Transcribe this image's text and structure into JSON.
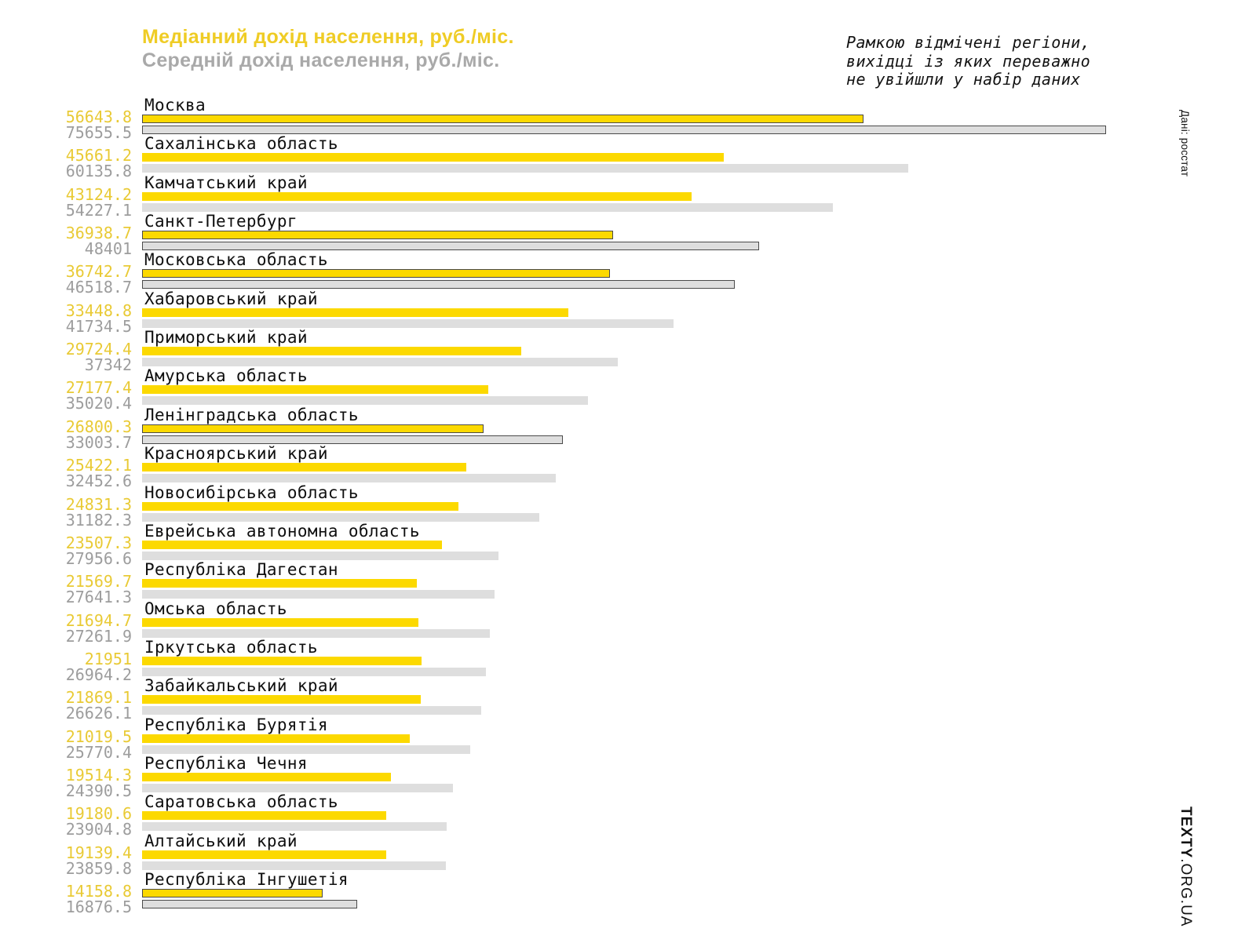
{
  "header": {
    "title": "Медіанний дохід населення, руб./міс.",
    "subtitle": "Середній дохід населення, руб./міс."
  },
  "note": {
    "lines": [
      "Рамкою відмічені регіони,",
      "вихідці із яких переважно",
      "не увійшли у набір даних"
    ]
  },
  "source": "Дані: росстат",
  "watermark": {
    "bold": "TEXTY",
    "rest": ".ORG.UA"
  },
  "colors": {
    "median_bar": "#fcd900",
    "mean_bar": "#dedede",
    "box_border": "#4a4a4a",
    "title_yellow": "#efcc25",
    "subtitle_gray": "#a9a9a9",
    "median_value_text": "#e9ca35",
    "mean_value_text": "#9d9d9d"
  },
  "chart_data": {
    "type": "bar",
    "orientation": "horizontal",
    "title": "Медіанний дохід населення, руб./міс.",
    "subtitle": "Середній дохід населення, руб./міс.",
    "value_axis_max": 75655.5,
    "grid": false,
    "legend_position": "title-as-legend",
    "series": [
      {
        "name": "Медіанний дохід населення, руб./міс.",
        "color": "#fcd900"
      },
      {
        "name": "Середній дохід населення, руб./міс.",
        "color": "#dedede"
      }
    ],
    "boxed_meaning": "Рамкою відмічені регіони, вихідці із яких переважно не увійшли у набір даних",
    "regions": [
      {
        "name": "Москва",
        "median": 56643.8,
        "mean": 75655.5,
        "boxed": true
      },
      {
        "name": "Сахалінська область",
        "median": 45661.2,
        "mean": 60135.8,
        "boxed": false
      },
      {
        "name": "Камчатський край",
        "median": 43124.2,
        "mean": 54227.1,
        "boxed": false
      },
      {
        "name": "Санкт-Петербург",
        "median": 36938.7,
        "mean": 48401,
        "boxed": true
      },
      {
        "name": "Московська область",
        "median": 36742.7,
        "mean": 46518.7,
        "boxed": true
      },
      {
        "name": "Хабаровський край",
        "median": 33448.8,
        "mean": 41734.5,
        "boxed": false
      },
      {
        "name": "Приморський край",
        "median": 29724.4,
        "mean": 37342,
        "boxed": false
      },
      {
        "name": "Амурська область",
        "median": 27177.4,
        "mean": 35020.4,
        "boxed": false
      },
      {
        "name": "Ленінградська область",
        "median": 26800.3,
        "mean": 33003.7,
        "boxed": true
      },
      {
        "name": "Красноярський край",
        "median": 25422.1,
        "mean": 32452.6,
        "boxed": false
      },
      {
        "name": "Новосибірська область",
        "median": 24831.3,
        "mean": 31182.3,
        "boxed": false
      },
      {
        "name": "Еврейська автономна область",
        "median": 23507.3,
        "mean": 27956.6,
        "boxed": false
      },
      {
        "name": "Республіка Дагестан",
        "median": 21569.7,
        "mean": 27641.3,
        "boxed": false
      },
      {
        "name": "Омська область",
        "median": 21694.7,
        "mean": 27261.9,
        "boxed": false
      },
      {
        "name": "Іркутська область",
        "median": 21951,
        "mean": 26964.2,
        "boxed": false
      },
      {
        "name": "Забайкальський край",
        "median": 21869.1,
        "mean": 26626.1,
        "boxed": false
      },
      {
        "name": "Республіка Бурятія",
        "median": 21019.5,
        "mean": 25770.4,
        "boxed": false
      },
      {
        "name": "Республіка Чечня",
        "median": 19514.3,
        "mean": 24390.5,
        "boxed": false
      },
      {
        "name": "Саратовська область",
        "median": 19180.6,
        "mean": 23904.8,
        "boxed": false
      },
      {
        "name": "Алтайський край",
        "median": 19139.4,
        "mean": 23859.8,
        "boxed": false
      },
      {
        "name": "Республіка Інгушетія",
        "median": 14158.8,
        "mean": 16876.5,
        "boxed": true
      }
    ]
  }
}
